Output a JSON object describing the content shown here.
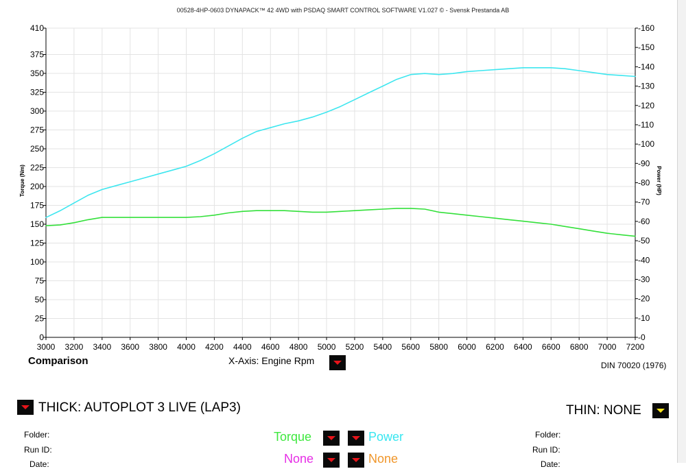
{
  "header": {
    "title": "00528-4HP-0603 DYNAPACK™ 42 4WD with PSDAQ SMART CONTROL SOFTWARE V1.027 © - Svensk Prestanda AB"
  },
  "chart_data": {
    "type": "line",
    "title": "00528-4HP-0603 DYNAPACK™ 42 4WD with PSDAQ SMART CONTROL SOFTWARE V1.027 © - Svensk Prestanda AB",
    "xlabel": "Engine Rpm",
    "ylabel": "Torque (Nm)",
    "y2label": "Power (HP)",
    "xlim": [
      3000,
      7200
    ],
    "ylim": [
      0,
      410
    ],
    "y2lim": [
      0,
      160
    ],
    "grid": true,
    "x_ticks": [
      3000,
      3200,
      3400,
      3600,
      3800,
      4000,
      4200,
      4400,
      4600,
      4800,
      5000,
      5200,
      5400,
      5600,
      5800,
      6000,
      6200,
      6400,
      6600,
      6800,
      7000,
      7200
    ],
    "y_ticks": [
      0,
      25,
      50,
      75,
      100,
      125,
      150,
      175,
      200,
      225,
      250,
      275,
      300,
      325,
      350,
      375,
      410
    ],
    "y2_ticks": [
      0,
      10,
      20,
      30,
      40,
      50,
      60,
      70,
      80,
      90,
      100,
      110,
      120,
      130,
      140,
      150,
      160
    ],
    "series": [
      {
        "name": "Torque",
        "axis": "left",
        "color": "#33e03a",
        "x": [
          3000,
          3100,
          3200,
          3300,
          3400,
          3500,
          3600,
          3700,
          3800,
          3900,
          4000,
          4100,
          4200,
          4300,
          4400,
          4500,
          4600,
          4700,
          4800,
          4900,
          5000,
          5100,
          5200,
          5300,
          5400,
          5500,
          5600,
          5700,
          5800,
          5900,
          6000,
          6100,
          6200,
          6300,
          6400,
          6500,
          6600,
          6700,
          6800,
          6900,
          7000,
          7100,
          7200
        ],
        "y": [
          148,
          149,
          152,
          156,
          159,
          159,
          159,
          159,
          159,
          159,
          159,
          160,
          162,
          165,
          167,
          168,
          168,
          168,
          167,
          166,
          166,
          167,
          168,
          169,
          170,
          171,
          171,
          170,
          166,
          164,
          162,
          160,
          158,
          156,
          154,
          152,
          150,
          147,
          144,
          141,
          138,
          136,
          134
        ]
      },
      {
        "name": "Power",
        "axis": "right",
        "color": "#3de6ef",
        "x": [
          3000,
          3100,
          3200,
          3300,
          3400,
          3500,
          3600,
          3700,
          3800,
          3900,
          4000,
          4100,
          4200,
          4300,
          4400,
          4500,
          4600,
          4700,
          4800,
          4900,
          5000,
          5100,
          5200,
          5300,
          5400,
          5500,
          5600,
          5700,
          5800,
          5900,
          6000,
          6100,
          6200,
          6300,
          6400,
          6500,
          6600,
          6700,
          6800,
          6900,
          7000,
          7100,
          7200
        ],
        "y": [
          62,
          65.5,
          69.5,
          73.5,
          76.5,
          78.5,
          80.5,
          82.5,
          84.5,
          86.5,
          88.5,
          91.5,
          95,
          99,
          103,
          106.5,
          108.5,
          110.5,
          112,
          114,
          116.5,
          119.5,
          123,
          126.5,
          130,
          133.5,
          136,
          136.5,
          136,
          136.5,
          137.5,
          138,
          138.5,
          139,
          139.5,
          139.5,
          139.5,
          139,
          138,
          137,
          136,
          135.5,
          135
        ]
      }
    ]
  },
  "controls": {
    "comparison_label": "Comparison",
    "xaxis_label": "X-Axis: Engine Rpm",
    "din_label": "DIN 70020 (1976)",
    "thick_label": "THICK: AUTOPLOT 3 LIVE (LAP3)",
    "thin_label": "THIN: NONE"
  },
  "channels": {
    "torque": "Torque",
    "power": "Power",
    "none1": "None",
    "none2": "None",
    "colors": {
      "torque": "#3ee83e",
      "power": "#37e6f0",
      "none1": "#e62ee6",
      "none2": "#f0962a"
    }
  },
  "info": {
    "left_folder": "Folder:",
    "left_runid": "Run ID:",
    "left_date": "Date:",
    "right_folder": "Folder:",
    "right_runid": "Run ID:",
    "right_date": "Date:"
  }
}
